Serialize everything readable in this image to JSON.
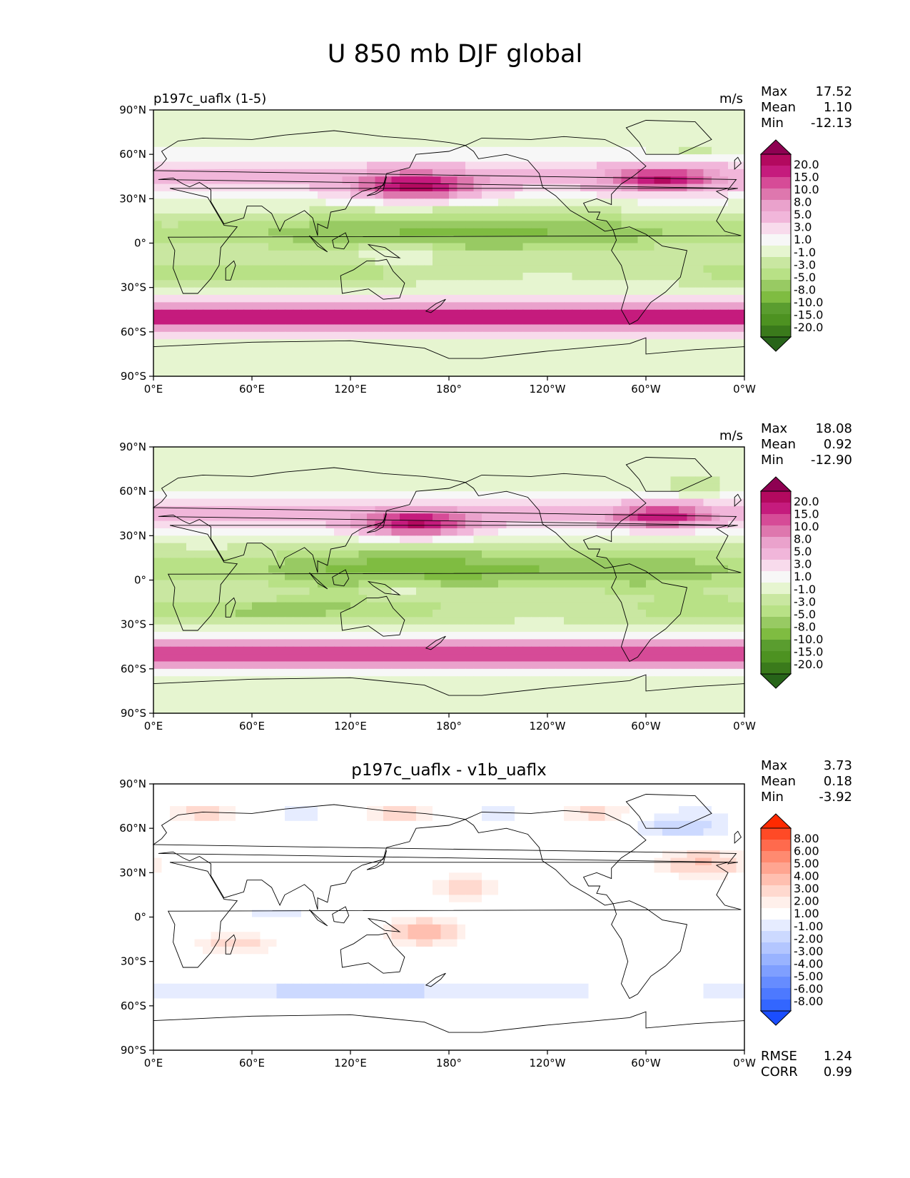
{
  "figure_title": "U 850 mb DJF global",
  "colors": {
    "coast": "#000000",
    "frame": "#000000"
  },
  "chart_data": [
    {
      "type": "heatmap",
      "title_left": "p197c_uaflx (1-5)",
      "title_center": "",
      "units": "m/s",
      "stats": [
        {
          "label": "Max",
          "value": "17.52"
        },
        {
          "label": "Mean",
          "value": "1.10"
        },
        {
          "label": "Min",
          "value": "-12.13"
        }
      ],
      "xticks": [
        "0°E",
        "60°E",
        "120°E",
        "180°",
        "120°W",
        "60°W",
        "0°W"
      ],
      "yticks": [
        "90°N",
        "60°N",
        "30°N",
        "0°",
        "30°S",
        "60°S",
        "90°S"
      ],
      "xlim": [
        0,
        360
      ],
      "ylim": [
        -90,
        90
      ],
      "colorbar": {
        "labels": [
          "20.0",
          "15.0",
          "10.0",
          "8.0",
          "5.0",
          "3.0",
          "1.0",
          "-1.0",
          "-3.0",
          "-5.0",
          "-8.0",
          "-10.0",
          "-15.0",
          "-20.0"
        ],
        "colors": [
          "#8e0152",
          "#b3095f",
          "#c51b7d",
          "#d64b97",
          "#de77ae",
          "#eaa2cc",
          "#f1b6da",
          "#f8dbec",
          "#f7f7f7",
          "#e6f5d0",
          "#c9e7a1",
          "#b8e186",
          "#98ca63",
          "#7fbc41",
          "#5a9d2f",
          "#4d9221",
          "#3a7a1b",
          "#276419"
        ]
      },
      "bottom_stats": []
    },
    {
      "type": "heatmap",
      "title_left": "",
      "title_center": "",
      "units": "m/s",
      "stats": [
        {
          "label": "Max",
          "value": "18.08"
        },
        {
          "label": "Mean",
          "value": "0.92"
        },
        {
          "label": "Min",
          "value": "-12.90"
        }
      ],
      "xticks": [
        "0°E",
        "60°E",
        "120°E",
        "180°",
        "120°W",
        "60°W",
        "0°W"
      ],
      "yticks": [
        "90°N",
        "60°N",
        "30°N",
        "0°",
        "30°S",
        "60°S",
        "90°S"
      ],
      "xlim": [
        0,
        360
      ],
      "ylim": [
        -90,
        90
      ],
      "colorbar": {
        "labels": [
          "20.0",
          "15.0",
          "10.0",
          "8.0",
          "5.0",
          "3.0",
          "1.0",
          "-1.0",
          "-3.0",
          "-5.0",
          "-8.0",
          "-10.0",
          "-15.0",
          "-20.0"
        ],
        "colors": [
          "#8e0152",
          "#b3095f",
          "#c51b7d",
          "#d64b97",
          "#de77ae",
          "#eaa2cc",
          "#f1b6da",
          "#f8dbec",
          "#f7f7f7",
          "#e6f5d0",
          "#c9e7a1",
          "#b8e186",
          "#98ca63",
          "#7fbc41",
          "#5a9d2f",
          "#4d9221",
          "#3a7a1b",
          "#276419"
        ]
      },
      "bottom_stats": []
    },
    {
      "type": "heatmap",
      "title_left": "",
      "title_center": "p197c_uaflx - v1b_uaflx",
      "units": "",
      "stats": [
        {
          "label": "Max",
          "value": "3.73"
        },
        {
          "label": "Mean",
          "value": "0.18"
        },
        {
          "label": "Min",
          "value": "-3.92"
        }
      ],
      "xticks": [
        "0°E",
        "60°E",
        "120°E",
        "180°",
        "120°W",
        "60°W",
        "0°W"
      ],
      "yticks": [
        "90°N",
        "60°N",
        "30°N",
        "0°",
        "30°S",
        "60°S",
        "90°S"
      ],
      "xlim": [
        0,
        360
      ],
      "ylim": [
        -90,
        90
      ],
      "colorbar": {
        "labels": [
          "8.00",
          "6.00",
          "5.00",
          "4.00",
          "3.00",
          "2.00",
          "1.00",
          "-1.00",
          "-2.00",
          "-3.00",
          "-4.00",
          "-5.00",
          "-6.00",
          "-8.00"
        ],
        "colors": [
          "#ff2a00",
          "#ff4a26",
          "#ff6a4d",
          "#ff8a70",
          "#ffa591",
          "#ffbfb0",
          "#ffd9cf",
          "#fff0eb",
          "#ffffff",
          "#e6ecff",
          "#ccd9ff",
          "#b3c6ff",
          "#99b3ff",
          "#7f9fff",
          "#668cff",
          "#4d79ff",
          "#3366ff",
          "#1a4dff"
        ]
      },
      "bottom_stats": [
        {
          "label": "RMSE",
          "value": "1.24"
        },
        {
          "label": "CORR",
          "value": "0.99"
        }
      ]
    }
  ]
}
